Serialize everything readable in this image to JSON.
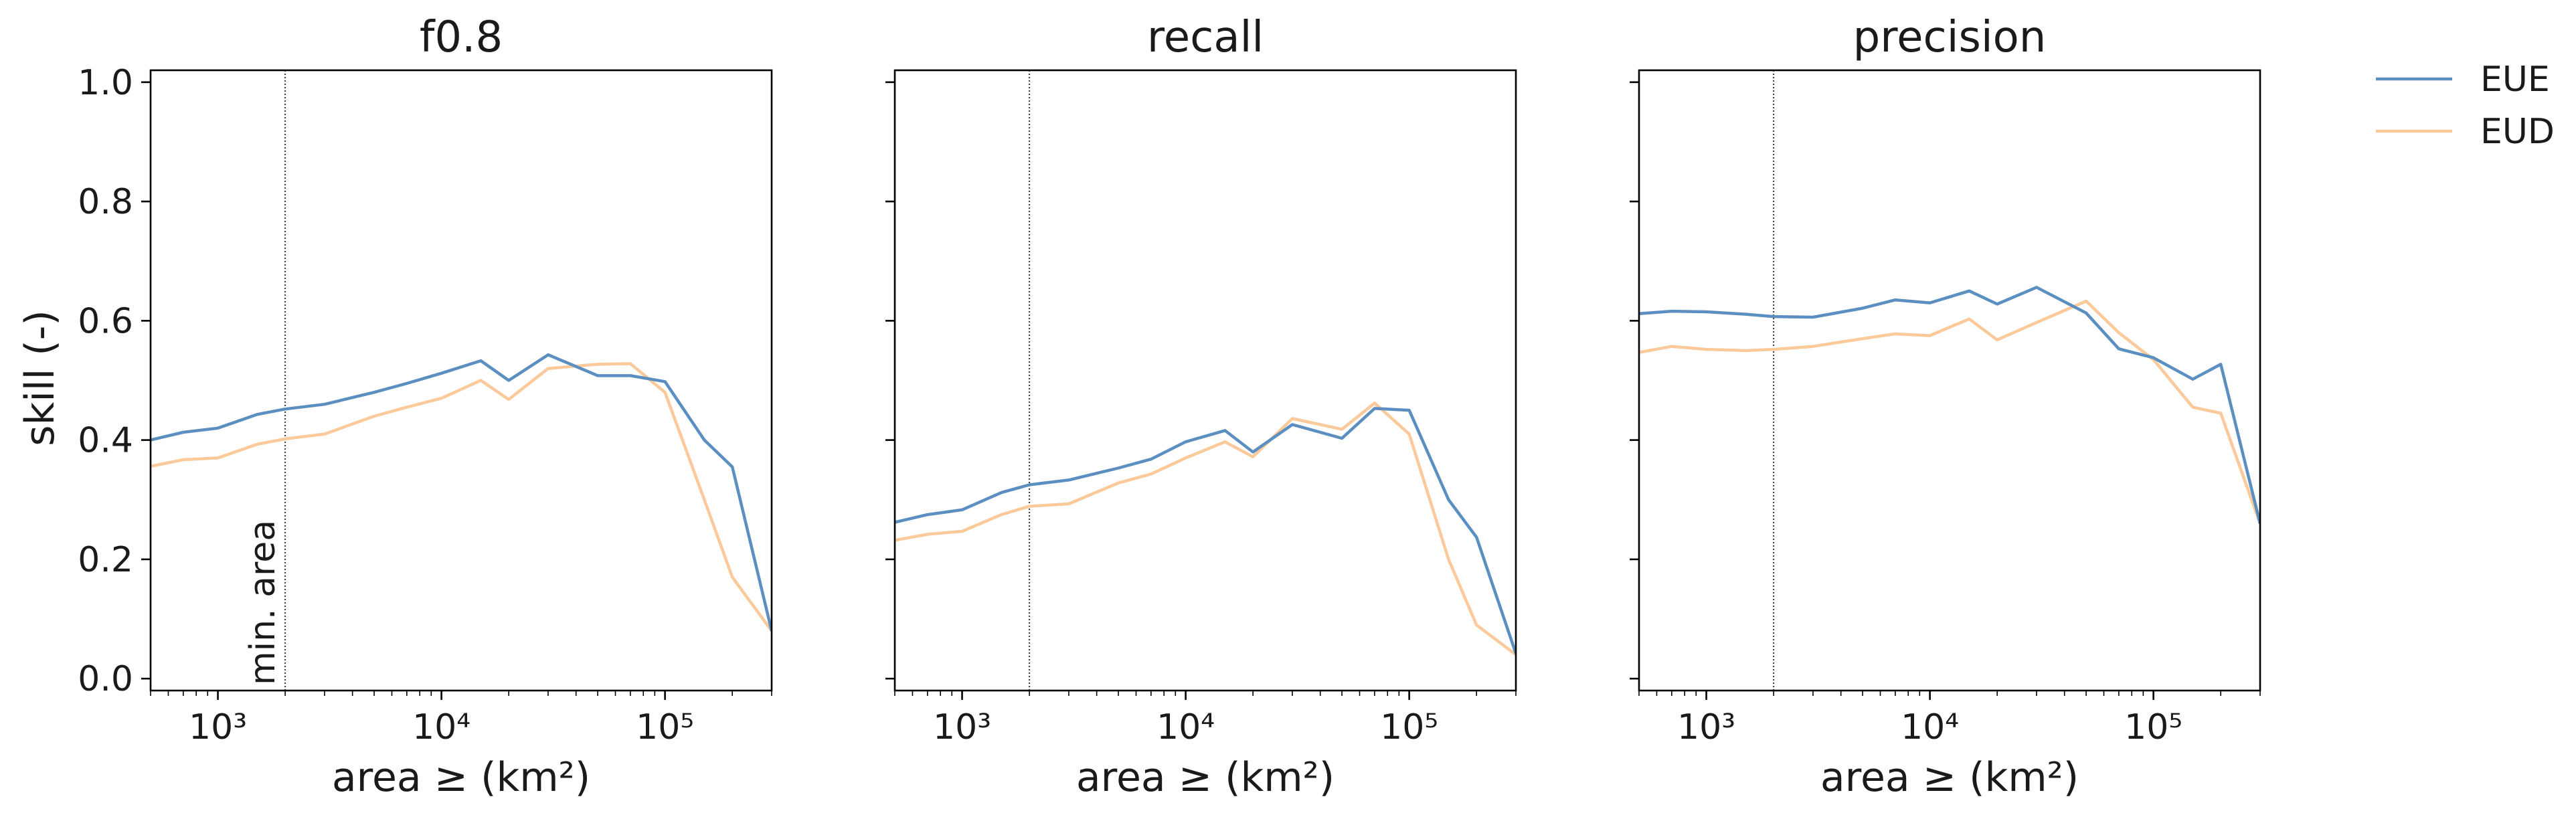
{
  "figure": {
    "ylabel": "skill (-)",
    "annotation": "min. area",
    "min_area": 2000
  },
  "legend": [
    {
      "name": "EUE",
      "color": "#5b8ec1"
    },
    {
      "name": "EUD",
      "color": "#fbc99a"
    }
  ],
  "chart_data": [
    {
      "type": "line",
      "title": "f0.8",
      "xlabel": "area ≥ (km²)",
      "ylabel": "skill (-)",
      "xscale": "log",
      "xlim": [
        500,
        300000
      ],
      "ylim": [
        -0.02,
        1.02
      ],
      "xticks": [
        "10³",
        "10⁴",
        "10⁵"
      ],
      "yticks": [
        "0.0",
        "0.2",
        "0.4",
        "0.6",
        "0.8",
        "1.0"
      ],
      "x": [
        500,
        700,
        1000,
        1500,
        2000,
        3000,
        5000,
        7000,
        10000,
        15000,
        20000,
        30000,
        50000,
        70000,
        100000,
        150000,
        200000,
        300000
      ],
      "series": [
        {
          "name": "EUE",
          "color": "#5b8ec1",
          "values": [
            0.4,
            0.413,
            0.42,
            0.443,
            0.452,
            0.46,
            0.48,
            0.495,
            0.512,
            0.533,
            0.5,
            0.543,
            0.508,
            0.508,
            0.498,
            0.4,
            0.355,
            0.08
          ]
        },
        {
          "name": "EUD",
          "color": "#fbc99a",
          "values": [
            0.356,
            0.367,
            0.37,
            0.393,
            0.402,
            0.41,
            0.44,
            0.455,
            0.47,
            0.5,
            0.468,
            0.52,
            0.527,
            0.528,
            0.48,
            0.3,
            0.17,
            0.08
          ]
        }
      ]
    },
    {
      "type": "line",
      "title": "recall",
      "xlabel": "area ≥ (km²)",
      "xscale": "log",
      "xlim": [
        500,
        300000
      ],
      "ylim": [
        -0.02,
        1.02
      ],
      "xticks": [
        "10³",
        "10⁴",
        "10⁵"
      ],
      "x": [
        500,
        700,
        1000,
        1500,
        2000,
        3000,
        5000,
        7000,
        10000,
        15000,
        20000,
        30000,
        50000,
        70000,
        100000,
        150000,
        200000,
        300000
      ],
      "series": [
        {
          "name": "EUE",
          "color": "#5b8ec1",
          "values": [
            0.262,
            0.275,
            0.283,
            0.312,
            0.325,
            0.333,
            0.353,
            0.368,
            0.397,
            0.416,
            0.38,
            0.426,
            0.403,
            0.453,
            0.45,
            0.3,
            0.237,
            0.042
          ]
        },
        {
          "name": "EUD",
          "color": "#fbc99a",
          "values": [
            0.232,
            0.242,
            0.247,
            0.275,
            0.289,
            0.293,
            0.328,
            0.343,
            0.37,
            0.397,
            0.372,
            0.436,
            0.418,
            0.462,
            0.41,
            0.2,
            0.09,
            0.04
          ]
        }
      ]
    },
    {
      "type": "line",
      "title": "precision",
      "xlabel": "area ≥ (km²)",
      "xscale": "log",
      "xlim": [
        500,
        300000
      ],
      "ylim": [
        -0.02,
        1.02
      ],
      "xticks": [
        "10³",
        "10⁴",
        "10⁵"
      ],
      "x": [
        500,
        700,
        1000,
        1500,
        2000,
        3000,
        5000,
        7000,
        10000,
        15000,
        20000,
        30000,
        50000,
        70000,
        100000,
        150000,
        200000,
        300000
      ],
      "series": [
        {
          "name": "EUE",
          "color": "#5b8ec1",
          "values": [
            0.612,
            0.616,
            0.615,
            0.611,
            0.607,
            0.606,
            0.621,
            0.635,
            0.63,
            0.65,
            0.628,
            0.656,
            0.613,
            0.553,
            0.538,
            0.502,
            0.527,
            0.26
          ]
        },
        {
          "name": "EUD",
          "color": "#fbc99a",
          "values": [
            0.547,
            0.557,
            0.552,
            0.55,
            0.552,
            0.557,
            0.57,
            0.578,
            0.575,
            0.603,
            0.568,
            0.597,
            0.633,
            0.58,
            0.535,
            0.455,
            0.445,
            0.26
          ]
        }
      ]
    }
  ]
}
